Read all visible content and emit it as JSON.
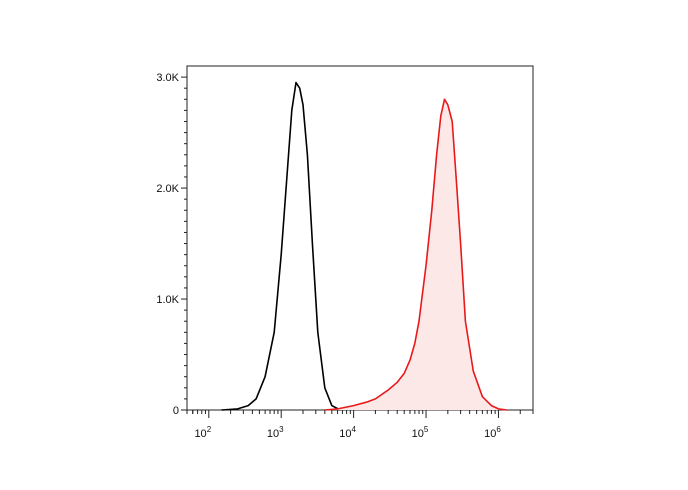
{
  "chart_data": {
    "type": "area",
    "x_scale": "log",
    "xlim": [
      50,
      3000000
    ],
    "ylim": [
      0,
      3100
    ],
    "y_ticks": [
      {
        "value": 0,
        "label": "0"
      },
      {
        "value": 1000,
        "label": "1.0K"
      },
      {
        "value": 2000,
        "label": "2.0K"
      },
      {
        "value": 3000,
        "label": "3.0K"
      }
    ],
    "x_ticks": [
      {
        "value": 100,
        "base": "10",
        "exp": "2"
      },
      {
        "value": 1000,
        "base": "10",
        "exp": "3"
      },
      {
        "value": 10000,
        "base": "10",
        "exp": "4"
      },
      {
        "value": 100000,
        "base": "10",
        "exp": "5"
      },
      {
        "value": 1000000,
        "base": "10",
        "exp": "6"
      }
    ],
    "series": [
      {
        "color": "#000000",
        "fill": "none",
        "x": [
          150,
          250,
          350,
          450,
          600,
          800,
          1000,
          1200,
          1400,
          1600,
          1800,
          2000,
          2300,
          2700,
          3200,
          4000,
          5000,
          6500
        ],
        "y": [
          0,
          10,
          40,
          100,
          300,
          700,
          1400,
          2100,
          2700,
          2950,
          2900,
          2750,
          2300,
          1500,
          700,
          200,
          40,
          0
        ]
      },
      {
        "color": "#e8191b",
        "fill": "#fde8e8",
        "x": [
          4000,
          6000,
          10000,
          15000,
          20000,
          30000,
          40000,
          50000,
          60000,
          70000,
          80000,
          100000,
          120000,
          140000,
          160000,
          180000,
          200000,
          230000,
          260000,
          300000,
          350000,
          450000,
          600000,
          800000,
          1000000,
          1300000
        ],
        "y": [
          0,
          10,
          40,
          70,
          100,
          180,
          250,
          330,
          450,
          600,
          800,
          1300,
          1800,
          2300,
          2650,
          2800,
          2750,
          2600,
          2100,
          1500,
          800,
          350,
          120,
          40,
          10,
          0
        ]
      }
    ]
  }
}
